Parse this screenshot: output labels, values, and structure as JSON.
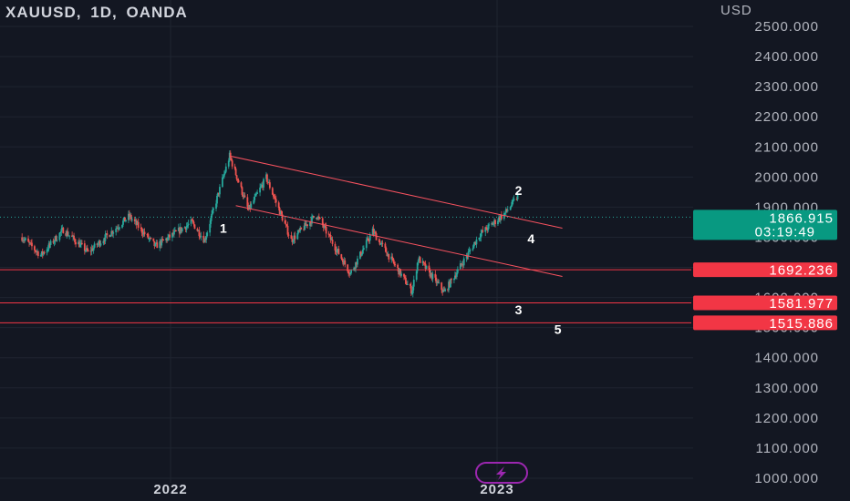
{
  "header": {
    "symbol": "XAUUSD",
    "interval": "1D",
    "broker": "OANDA"
  },
  "chart_data": {
    "type": "candlestick",
    "currency": "USD",
    "ylim": [
      1000,
      2500
    ],
    "yticks": [
      1000,
      1100,
      1200,
      1300,
      1400,
      1500,
      1600,
      1700,
      1800,
      1900,
      2000,
      2100,
      2200,
      2300,
      2400,
      2500
    ],
    "ytick_labels": [
      "1000.000",
      "1100.000",
      "1200.000",
      "1300.000",
      "1400.000",
      "1500.000",
      "1600.000",
      "1700.000",
      "1800.000",
      "1900.000",
      "2000.000",
      "2100.000",
      "2200.000",
      "2300.000",
      "2400.000",
      "2500.000"
    ],
    "x_labels": [
      {
        "label": "2022",
        "date": "2022-01-01"
      },
      {
        "label": "2023",
        "date": "2023-01-01"
      }
    ],
    "x_range": [
      "2021-07-19",
      "2023-07-24"
    ],
    "price_path": [
      {
        "date": "2021-07-19",
        "price": 1800
      },
      {
        "date": "2021-08-09",
        "price": 1740
      },
      {
        "date": "2021-09-03",
        "price": 1825
      },
      {
        "date": "2021-10-01",
        "price": 1750
      },
      {
        "date": "2021-11-16",
        "price": 1870
      },
      {
        "date": "2021-12-15",
        "price": 1770
      },
      {
        "date": "2022-01-25",
        "price": 1850
      },
      {
        "date": "2022-02-08",
        "price": 1790
      },
      {
        "date": "2022-03-08",
        "price": 2070
      },
      {
        "date": "2022-03-29",
        "price": 1890
      },
      {
        "date": "2022-04-18",
        "price": 1998
      },
      {
        "date": "2022-05-16",
        "price": 1790
      },
      {
        "date": "2022-06-13",
        "price": 1875
      },
      {
        "date": "2022-07-21",
        "price": 1680
      },
      {
        "date": "2022-08-15",
        "price": 1820
      },
      {
        "date": "2022-09-28",
        "price": 1620
      },
      {
        "date": "2022-10-05",
        "price": 1730
      },
      {
        "date": "2022-11-03",
        "price": 1617
      },
      {
        "date": "2022-12-13",
        "price": 1810
      },
      {
        "date": "2023-01-10",
        "price": 1880
      },
      {
        "date": "2023-01-24",
        "price": 1935
      }
    ],
    "last_price": {
      "value": 1866.915,
      "label": "1866.915",
      "countdown": "03:19:49"
    },
    "horizontal_levels": [
      {
        "value": 1692.236,
        "label": "1692.236"
      },
      {
        "value": 1581.977,
        "label": "1581.977"
      },
      {
        "value": 1515.886,
        "label": "1515.886"
      }
    ],
    "trendlines": [
      {
        "from": {
          "date": "2022-03-08",
          "price": 2070
        },
        "to": {
          "date": "2023-03-15",
          "price": 1830
        }
      },
      {
        "from": {
          "date": "2022-03-15",
          "price": 1905
        },
        "to": {
          "date": "2023-03-15",
          "price": 1670
        }
      }
    ],
    "wave_labels": [
      {
        "text": "1",
        "date": "2022-03-01",
        "price": 1815
      },
      {
        "text": "2",
        "date": "2023-01-25",
        "price": 1940
      },
      {
        "text": "3",
        "date": "2023-01-25",
        "price": 1545
      },
      {
        "text": "4",
        "date": "2023-02-08",
        "price": 1780
      },
      {
        "text": "5",
        "date": "2023-03-10",
        "price": 1480
      }
    ],
    "colors": {
      "background": "#131722",
      "up": "#26a69a",
      "down": "#ef5350",
      "level_line": "#f23645",
      "trendline": "#f7525f",
      "last_price_tag": "#089981",
      "grid": "#1f2430",
      "marker": "#9c27b0"
    },
    "grid": true
  },
  "icons": {
    "marker": "lightning-bolt-icon"
  }
}
